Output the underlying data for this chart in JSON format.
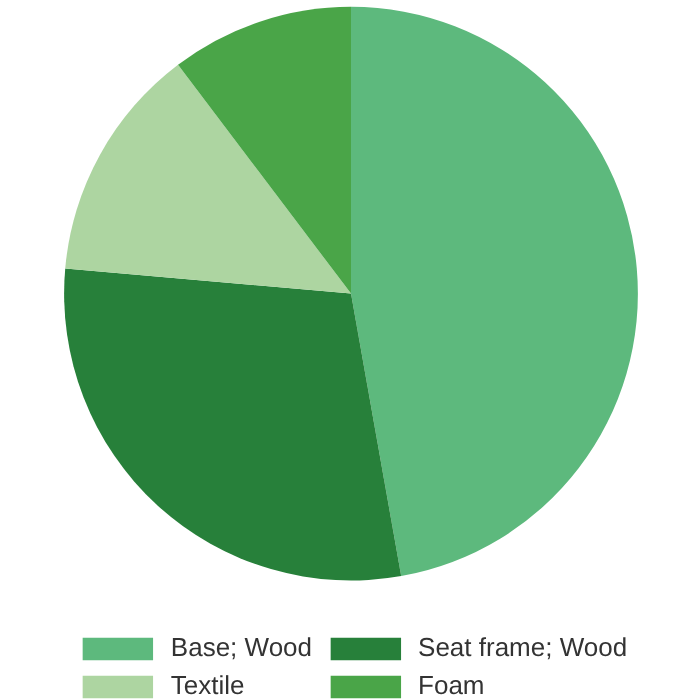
{
  "chart_data": {
    "type": "pie",
    "categories": [
      "Base; Wood",
      "Seat frame; Wood",
      "Textile",
      "Foam"
    ],
    "values": [
      47.2,
      29.2,
      13.3,
      10.3
    ],
    "colors": [
      "#5db97d",
      "#27803a",
      "#add5a1",
      "#4aa548"
    ],
    "legend": "bottom"
  }
}
